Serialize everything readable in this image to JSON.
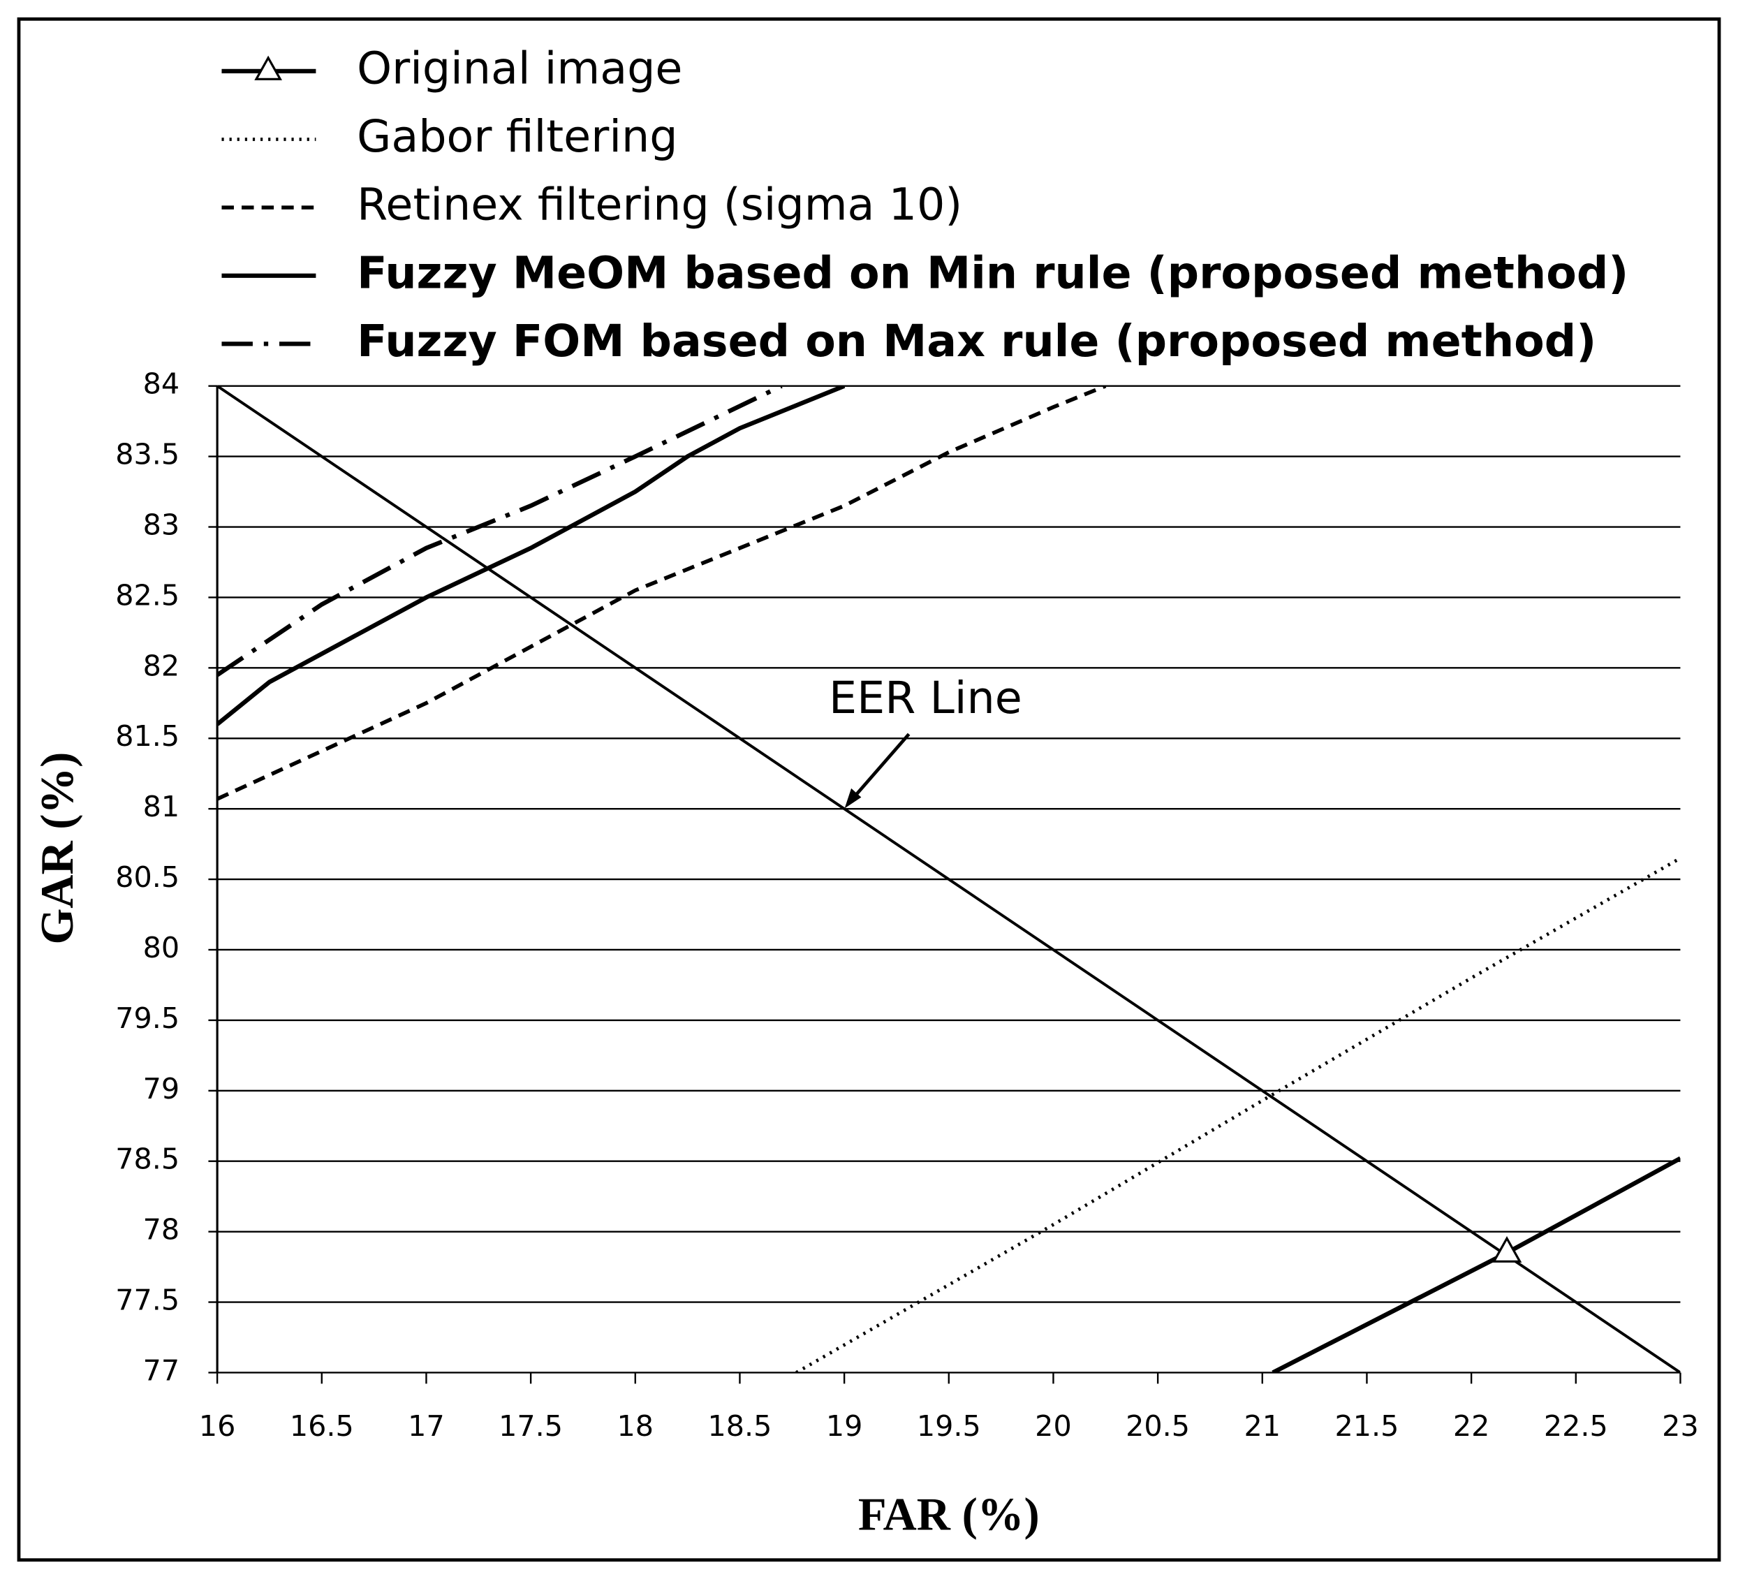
{
  "chart_data": {
    "type": "line",
    "xlabel": "FAR (%)",
    "ylabel": "GAR (%)",
    "xlim": [
      16,
      23
    ],
    "xticks": [
      16,
      16.5,
      17,
      17.5,
      18,
      18.5,
      19,
      19.5,
      20,
      20.5,
      21,
      21.5,
      22,
      22.5,
      23
    ],
    "ylim": [
      77,
      84
    ],
    "yticks": [
      77,
      77.5,
      78,
      78.5,
      79,
      79.5,
      80,
      80.5,
      81,
      81.5,
      82,
      82.5,
      83,
      83.5,
      84
    ],
    "grid": true,
    "legend": "top",
    "series": [
      {
        "name": "Original image",
        "color": "#000000",
        "style": "solid-bold",
        "marker": "triangle",
        "bold": false,
        "x": [
          21.05,
          22.17,
          23
        ],
        "values": [
          77,
          77.85,
          78.52
        ]
      },
      {
        "name": "Gabor filtering",
        "color": "#000000",
        "style": "dotted",
        "bold": false,
        "x": [
          18.77,
          20,
          21,
          22,
          23
        ],
        "values": [
          77,
          78.05,
          78.93,
          79.8,
          80.65
        ]
      },
      {
        "name": "Retinex filtering (sigma 10)",
        "color": "#000000",
        "style": "dashed",
        "bold": false,
        "x": [
          16,
          17,
          18,
          19,
          19.5,
          20,
          20.25
        ],
        "values": [
          81.07,
          81.75,
          82.55,
          83.15,
          83.53,
          83.85,
          84
        ]
      },
      {
        "name": "Fuzzy MeOM based on Min rule (proposed method)",
        "color": "#000000",
        "style": "solid-bold",
        "bold": true,
        "x": [
          16,
          16.25,
          16.5,
          17,
          17.5,
          18,
          18.25,
          18.5,
          19
        ],
        "values": [
          81.6,
          81.9,
          82.1,
          82.5,
          82.85,
          83.25,
          83.5,
          83.7,
          84
        ]
      },
      {
        "name": "Fuzzy FOM based on Max rule (proposed method)",
        "color": "#000000",
        "style": "dashdot",
        "bold": true,
        "x": [
          16,
          16.5,
          17,
          17.5,
          18,
          18.7
        ],
        "values": [
          81.95,
          82.45,
          82.85,
          83.15,
          83.5,
          84
        ]
      }
    ],
    "eer_line": {
      "color": "#000000",
      "x": [
        16,
        23
      ],
      "values": [
        84,
        77
      ]
    },
    "annotation": {
      "text": "EER Line",
      "x": 19,
      "y": 81
    }
  }
}
